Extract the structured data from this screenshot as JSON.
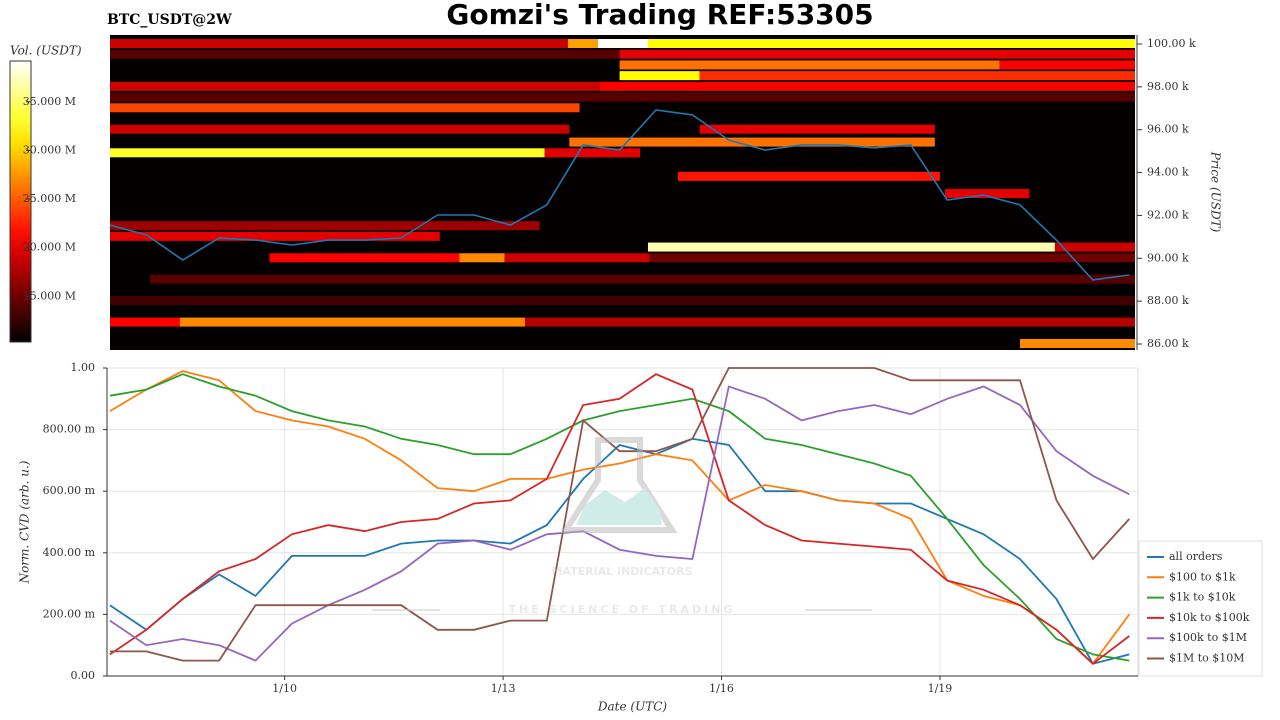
{
  "header": {
    "title": "Gomzi's Trading REF:53305"
  },
  "watermark": {
    "brand": "MATERIAL INDICATORS",
    "tagline": "THE SCIENCE OF TRADING"
  },
  "chart_data": [
    {
      "type": "heatmap",
      "title": "BTC_USDT@2W",
      "y_label": "Price (USDT)",
      "xlim": [
        7.6,
        21.68
      ],
      "ylim": [
        85720,
        100420
      ],
      "yticks": [
        {
          "value": 86000,
          "label": "86.00 k"
        },
        {
          "value": 88000,
          "label": "88.00 k"
        },
        {
          "value": 90000,
          "label": "90.00 k"
        },
        {
          "value": 92000,
          "label": "92.00 k"
        },
        {
          "value": 94000,
          "label": "94.00 k"
        },
        {
          "value": 96000,
          "label": "96.00 k"
        },
        {
          "value": 98000,
          "label": "98.00 k"
        },
        {
          "value": 100000,
          "label": "100.00 k"
        }
      ],
      "colorbar": {
        "label": "Vol. (USDT)",
        "lim": [
          10300000,
          39200000
        ],
        "ticks": [
          {
            "value": 15000000,
            "label": "15.000 M"
          },
          {
            "value": 20000000,
            "label": "20.000 M"
          },
          {
            "value": 25000000,
            "label": "25.000 M"
          },
          {
            "value": 30000000,
            "label": "30.000 M"
          },
          {
            "value": 35000000,
            "label": "35.000 M"
          }
        ]
      },
      "cells": [
        {
          "price": 100000,
          "x0": 7.6,
          "x1": 13.89,
          "volume": 19000000
        },
        {
          "price": 100000,
          "x0": 13.89,
          "x1": 14.3,
          "volume": 28000000
        },
        {
          "price": 100000,
          "x0": 14.3,
          "x1": 14.99,
          "volume": 39000000
        },
        {
          "price": 100000,
          "x0": 14.99,
          "x1": 21.68,
          "volume": 32000000
        },
        {
          "price": 99500,
          "x0": 7.6,
          "x1": 14.6,
          "volume": 14000000
        },
        {
          "price": 99500,
          "x0": 14.6,
          "x1": 21.68,
          "volume": 20000000
        },
        {
          "price": 99000,
          "x0": 14.6,
          "x1": 19.82,
          "volume": 26000000
        },
        {
          "price": 99000,
          "x0": 19.82,
          "x1": 21.68,
          "volume": 21000000
        },
        {
          "price": 98500,
          "x0": 14.6,
          "x1": 15.7,
          "volume": 32000000
        },
        {
          "price": 98500,
          "x0": 15.7,
          "x1": 21.68,
          "volume": 23000000
        },
        {
          "price": 98000,
          "x0": 7.6,
          "x1": 14.33,
          "volume": 19000000
        },
        {
          "price": 98000,
          "x0": 14.33,
          "x1": 21.68,
          "volume": 21000000
        },
        {
          "price": 97500,
          "x0": 7.6,
          "x1": 21.68,
          "volume": 14000000
        },
        {
          "price": 97000,
          "x0": 7.6,
          "x1": 14.05,
          "volume": 24000000
        },
        {
          "price": 96000,
          "x0": 7.6,
          "x1": 13.91,
          "volume": 19000000
        },
        {
          "price": 96000,
          "x0": 15.7,
          "x1": 18.93,
          "volume": 20000000
        },
        {
          "price": 95400,
          "x0": 13.91,
          "x1": 18.93,
          "volume": 26000000
        },
        {
          "price": 94900,
          "x0": 7.6,
          "x1": 13.57,
          "volume": 33000000
        },
        {
          "price": 94900,
          "x0": 13.57,
          "x1": 14.88,
          "volume": 20000000
        },
        {
          "price": 93800,
          "x0": 15.4,
          "x1": 19.0,
          "volume": 22000000
        },
        {
          "price": 93000,
          "x0": 19.07,
          "x1": 20.23,
          "volume": 20000000
        },
        {
          "price": 91500,
          "x0": 7.6,
          "x1": 13.5,
          "volume": 17000000
        },
        {
          "price": 91000,
          "x0": 7.6,
          "x1": 12.13,
          "volume": 20000000
        },
        {
          "price": 90500,
          "x0": 14.99,
          "x1": 20.58,
          "volume": 37000000
        },
        {
          "price": 90500,
          "x0": 20.58,
          "x1": 21.68,
          "volume": 19000000
        },
        {
          "price": 90000,
          "x0": 9.79,
          "x1": 12.4,
          "volume": 21000000
        },
        {
          "price": 90000,
          "x0": 12.4,
          "x1": 13.02,
          "volume": 27000000
        },
        {
          "price": 90000,
          "x0": 13.02,
          "x1": 15.01,
          "volume": 19000000
        },
        {
          "price": 90000,
          "x0": 15.01,
          "x1": 21.68,
          "volume": 15000000
        },
        {
          "price": 89000,
          "x0": 8.15,
          "x1": 21.68,
          "volume": 14000000
        },
        {
          "price": 88000,
          "x0": 7.6,
          "x1": 21.68,
          "volume": 13000000
        },
        {
          "price": 87000,
          "x0": 7.6,
          "x1": 8.56,
          "volume": 21000000
        },
        {
          "price": 87000,
          "x0": 8.56,
          "x1": 13.3,
          "volume": 27000000
        },
        {
          "price": 87000,
          "x0": 13.3,
          "x1": 21.68,
          "volume": 18000000
        },
        {
          "price": 86000,
          "x0": 20.1,
          "x1": 21.68,
          "volume": 27000000
        }
      ],
      "price": {
        "color": "#1f77b4",
        "x": [
          7.6,
          8.1,
          8.6,
          9.1,
          9.6,
          10.1,
          10.6,
          11.1,
          11.6,
          12.1,
          12.6,
          13.1,
          13.6,
          14.1,
          14.6,
          15.1,
          15.6,
          16.1,
          16.6,
          17.1,
          17.6,
          18.1,
          18.6,
          19.1,
          19.6,
          20.1,
          20.6,
          21.1,
          21.6
        ],
        "values": [
          91550,
          91090,
          89920,
          90950,
          90850,
          90620,
          90850,
          90850,
          90950,
          92020,
          92020,
          91550,
          92490,
          95290,
          95050,
          96920,
          96690,
          95520,
          95050,
          95290,
          95290,
          95150,
          95290,
          92720,
          92950,
          92490,
          90850,
          88990,
          89220
        ]
      }
    },
    {
      "type": "line",
      "x_label": "Date (UTC)",
      "y_label": "Norm. CVD (arb. u.)",
      "xlim": [
        7.56,
        21.72
      ],
      "ylim": [
        0,
        1
      ],
      "xticks": [
        {
          "value": 10,
          "label": "1/10"
        },
        {
          "value": 13,
          "label": "1/13"
        },
        {
          "value": 16,
          "label": "1/16"
        },
        {
          "value": 19,
          "label": "1/19"
        }
      ],
      "yticks": [
        {
          "value": 0,
          "label": "0.00"
        },
        {
          "value": 0.2,
          "label": "200.00 m"
        },
        {
          "value": 0.4,
          "label": "400.00 m"
        },
        {
          "value": 0.6,
          "label": "600.00 m"
        },
        {
          "value": 0.8,
          "label": "800.00 m"
        },
        {
          "value": 1,
          "label": "1.00"
        }
      ],
      "grid": true,
      "legend": "lower right",
      "x": [
        7.6,
        8.1,
        8.6,
        9.1,
        9.6,
        10.1,
        10.6,
        11.1,
        11.6,
        12.1,
        12.6,
        13.1,
        13.6,
        14.1,
        14.6,
        15.1,
        15.6,
        16.1,
        16.6,
        17.1,
        17.6,
        18.1,
        18.6,
        19.1,
        19.6,
        20.1,
        20.6,
        21.1,
        21.6
      ],
      "series": [
        {
          "name": "all orders",
          "color": "#1f77b4",
          "values": [
            0.23,
            0.15,
            0.25,
            0.33,
            0.26,
            0.39,
            0.39,
            0.39,
            0.43,
            0.44,
            0.44,
            0.43,
            0.49,
            0.64,
            0.75,
            0.72,
            0.77,
            0.75,
            0.6,
            0.6,
            0.57,
            0.56,
            0.56,
            0.51,
            0.46,
            0.38,
            0.25,
            0.04,
            0.07
          ]
        },
        {
          "name": "$100 to $1k",
          "color": "#ff7f0e",
          "values": [
            0.86,
            0.93,
            0.99,
            0.96,
            0.86,
            0.83,
            0.81,
            0.77,
            0.7,
            0.61,
            0.6,
            0.64,
            0.64,
            0.67,
            0.69,
            0.72,
            0.7,
            0.57,
            0.62,
            0.6,
            0.57,
            0.56,
            0.51,
            0.31,
            0.26,
            0.23,
            0.15,
            0.04,
            0.2
          ]
        },
        {
          "name": "$1k to $10k",
          "color": "#2ca02c",
          "values": [
            0.91,
            0.93,
            0.98,
            0.94,
            0.91,
            0.86,
            0.83,
            0.81,
            0.77,
            0.75,
            0.72,
            0.72,
            0.77,
            0.83,
            0.86,
            0.88,
            0.9,
            0.86,
            0.77,
            0.75,
            0.72,
            0.69,
            0.65,
            0.51,
            0.36,
            0.25,
            0.12,
            0.07,
            0.05
          ]
        },
        {
          "name": "$10k to $100k",
          "color": "#d62728",
          "values": [
            0.07,
            0.15,
            0.25,
            0.34,
            0.38,
            0.46,
            0.49,
            0.47,
            0.5,
            0.51,
            0.56,
            0.57,
            0.64,
            0.88,
            0.9,
            0.98,
            0.93,
            0.57,
            0.49,
            0.44,
            0.43,
            0.42,
            0.41,
            0.31,
            0.28,
            0.23,
            0.15,
            0.04,
            0.13
          ]
        },
        {
          "name": "$100k to $1M",
          "color": "#9467bd",
          "values": [
            0.18,
            0.1,
            0.12,
            0.1,
            0.05,
            0.17,
            0.23,
            0.28,
            0.34,
            0.43,
            0.44,
            0.41,
            0.46,
            0.47,
            0.41,
            0.39,
            0.38,
            0.94,
            0.9,
            0.83,
            0.86,
            0.88,
            0.85,
            0.9,
            0.94,
            0.88,
            0.73,
            0.65,
            0.59
          ]
        },
        {
          "name": "$1M to $10M",
          "color": "#8c564b",
          "values": [
            0.08,
            0.08,
            0.05,
            0.05,
            0.23,
            0.23,
            0.23,
            0.23,
            0.23,
            0.15,
            0.15,
            0.18,
            0.18,
            0.83,
            0.73,
            0.73,
            0.77,
            1.0,
            1.0,
            1.0,
            1.0,
            1.0,
            0.96,
            0.96,
            0.96,
            0.96,
            0.57,
            0.38,
            0.51
          ]
        }
      ]
    }
  ]
}
